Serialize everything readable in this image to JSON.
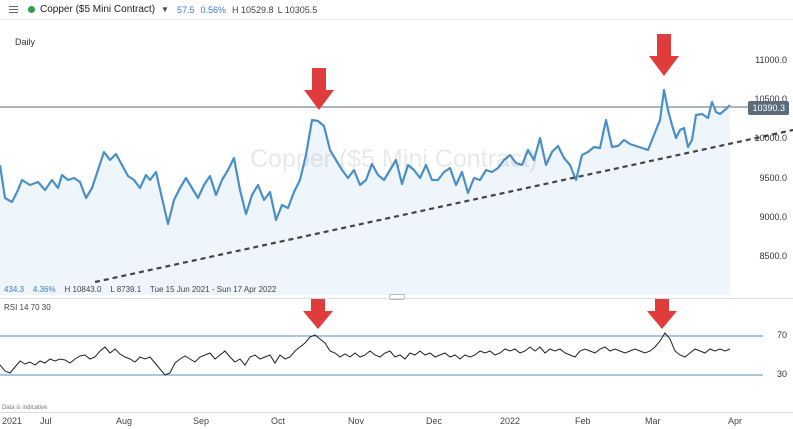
{
  "toolbar": {
    "symbol": "Copper ($5 Mini Contract)",
    "change": "57.5",
    "change_pct": "0.56%",
    "high": "H 10529.8",
    "low": "L 10305.5"
  },
  "chart": {
    "period": "Daily",
    "watermark": "Copper ($5 Mini Contract)",
    "current_price": "10390.3",
    "stats": {
      "val1": "434.3",
      "pct": "4.36%",
      "high": "H 10843.0",
      "low": "L 8739.1",
      "range": "Tue 15 Jun 2021 - Sun 17 Apr 2022"
    },
    "price_axis": [
      "11000.0",
      "10500.0",
      "10000.0",
      "9500.0",
      "9000.0",
      "8500.0"
    ],
    "x_axis": [
      "2021",
      "Jul",
      "Aug",
      "Sep",
      "Oct",
      "Nov",
      "Dec",
      "2022",
      "Feb",
      "Mar",
      "Apr"
    ],
    "disclaimer": "Data is indicative"
  },
  "rsi": {
    "label": "RSI  14  70  30",
    "levels": [
      "70",
      "30"
    ]
  },
  "colors": {
    "price_line": "#4a90c8",
    "area_fill": "#eef5fb",
    "trendline": "#444444",
    "arrow": "#e03c3c",
    "up_dot": "#2e9e45"
  }
}
